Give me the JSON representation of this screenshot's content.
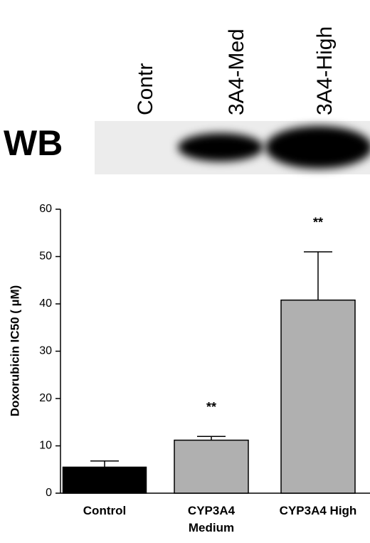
{
  "blot": {
    "label": "WB",
    "lanes": [
      "Contr",
      "3A4-Med",
      "3A4-High"
    ]
  },
  "chart_data": {
    "type": "bar",
    "y_label": "Doxorubicin IC50 ( µM)",
    "categories": [
      "Control",
      "CYP3A4 Medium",
      "CYP3A4 High"
    ],
    "values": [
      5.5,
      11.2,
      40.8
    ],
    "errors": [
      1.3,
      0.8,
      10.2
    ],
    "significance": [
      null,
      "**",
      "**"
    ],
    "colors": [
      "#000000",
      "#b0b0b0",
      "#b0b0b0"
    ],
    "ylim": [
      0,
      60
    ],
    "yticks": [
      0,
      10,
      20,
      30,
      40,
      50,
      60
    ],
    "grid": false
  }
}
